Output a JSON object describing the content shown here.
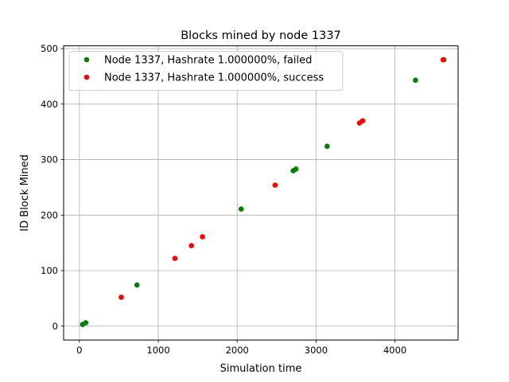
{
  "chart_data": {
    "type": "scatter",
    "title": "Blocks mined by node 1337",
    "xlabel": "Simulation time",
    "ylabel": "ID Block Mined",
    "xlim": [
      -200,
      4800
    ],
    "ylim": [
      -25,
      505
    ],
    "xticks": [
      {
        "value": 0,
        "label": "0"
      },
      {
        "value": 1000,
        "label": "1000"
      },
      {
        "value": 2000,
        "label": "2000"
      },
      {
        "value": 3000,
        "label": "3000"
      },
      {
        "value": 4000,
        "label": "4000"
      }
    ],
    "yticks": [
      {
        "value": 0,
        "label": "0"
      },
      {
        "value": 100,
        "label": "100"
      },
      {
        "value": 200,
        "label": "200"
      },
      {
        "value": 300,
        "label": "300"
      },
      {
        "value": 400,
        "label": "400"
      },
      {
        "value": 500,
        "label": "500"
      }
    ],
    "grid": true,
    "legend_position": "top-left",
    "series": [
      {
        "name": "Node 1337, Hashrate 1.000000%, failed",
        "color": "#008000",
        "points": [
          {
            "x": 40,
            "y": 3
          },
          {
            "x": 80,
            "y": 6
          },
          {
            "x": 730,
            "y": 74
          },
          {
            "x": 2050,
            "y": 211
          },
          {
            "x": 2710,
            "y": 280
          },
          {
            "x": 2745,
            "y": 283
          },
          {
            "x": 3140,
            "y": 324
          },
          {
            "x": 4260,
            "y": 443
          },
          {
            "x": 4620,
            "y": 480
          }
        ]
      },
      {
        "name": "Node 1337, Hashrate 1.000000%, success",
        "color": "#ff0000",
        "points": [
          {
            "x": 530,
            "y": 52
          },
          {
            "x": 1210,
            "y": 122
          },
          {
            "x": 1420,
            "y": 145
          },
          {
            "x": 1560,
            "y": 161
          },
          {
            "x": 2480,
            "y": 254
          },
          {
            "x": 3550,
            "y": 366
          },
          {
            "x": 3590,
            "y": 370
          },
          {
            "x": 4610,
            "y": 480
          }
        ]
      }
    ]
  }
}
